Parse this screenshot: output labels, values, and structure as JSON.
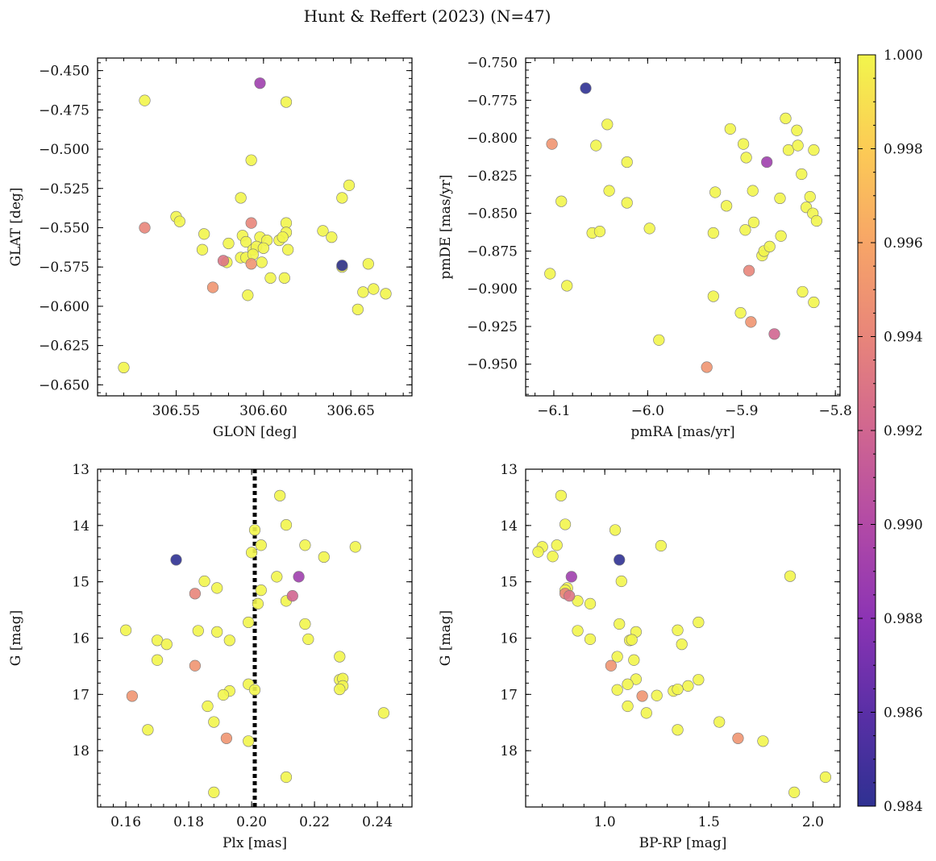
{
  "figure": {
    "title": "Hunt & Reffert (2023) (N=47)"
  },
  "colorbar": {
    "colormap": "plasma",
    "min": 0.984,
    "max": 1.0,
    "ticks": [
      "0.984",
      "0.986",
      "0.988",
      "0.990",
      "0.992",
      "0.994",
      "0.996",
      "0.998",
      "1.000"
    ],
    "tick_values": [
      0.984,
      0.986,
      0.988,
      0.99,
      0.992,
      0.994,
      0.996,
      0.998,
      1.0
    ]
  },
  "chart_data": [
    {
      "type": "scatter",
      "id": "glon-glat",
      "xlabel": "GLON [deg]",
      "ylabel": "GLAT [deg]",
      "xlim": [
        306.505,
        306.685
      ],
      "ylim": [
        -0.657,
        -0.442
      ],
      "xticks": [
        306.55,
        306.6,
        306.65
      ],
      "xticklabels": [
        "306.55",
        "306.60",
        "306.65"
      ],
      "yticks": [
        -0.65,
        -0.625,
        -0.6,
        -0.575,
        -0.55,
        -0.525,
        -0.5,
        -0.475,
        -0.45
      ],
      "yticklabels": [
        "−0.650",
        "−0.625",
        "−0.600",
        "−0.575",
        "−0.550",
        "−0.525",
        "−0.500",
        "−0.475",
        "−0.450"
      ],
      "invert_y": false,
      "points": [
        {
          "x": 306.532,
          "y": -0.469,
          "c": 1.0
        },
        {
          "x": 306.598,
          "y": -0.458,
          "c": 0.989
        },
        {
          "x": 306.613,
          "y": -0.47,
          "c": 1.0
        },
        {
          "x": 306.593,
          "y": -0.507,
          "c": 1.0
        },
        {
          "x": 306.587,
          "y": -0.531,
          "c": 1.0
        },
        {
          "x": 306.645,
          "y": -0.531,
          "c": 1.0
        },
        {
          "x": 306.649,
          "y": -0.523,
          "c": 1.0
        },
        {
          "x": 306.55,
          "y": -0.543,
          "c": 1.0
        },
        {
          "x": 306.552,
          "y": -0.546,
          "c": 1.0
        },
        {
          "x": 306.532,
          "y": -0.55,
          "c": 0.994
        },
        {
          "x": 306.593,
          "y": -0.547,
          "c": 0.994
        },
        {
          "x": 306.613,
          "y": -0.547,
          "c": 1.0
        },
        {
          "x": 306.566,
          "y": -0.554,
          "c": 1.0
        },
        {
          "x": 306.588,
          "y": -0.555,
          "c": 1.0
        },
        {
          "x": 306.598,
          "y": -0.556,
          "c": 1.0
        },
        {
          "x": 306.613,
          "y": -0.553,
          "c": 1.0
        },
        {
          "x": 306.634,
          "y": -0.552,
          "c": 1.0
        },
        {
          "x": 306.639,
          "y": -0.556,
          "c": 1.0
        },
        {
          "x": 306.58,
          "y": -0.56,
          "c": 1.0
        },
        {
          "x": 306.59,
          "y": -0.559,
          "c": 1.0
        },
        {
          "x": 306.602,
          "y": -0.558,
          "c": 1.0
        },
        {
          "x": 306.609,
          "y": -0.558,
          "c": 1.0
        },
        {
          "x": 306.611,
          "y": -0.556,
          "c": 1.0
        },
        {
          "x": 306.565,
          "y": -0.564,
          "c": 1.0
        },
        {
          "x": 306.594,
          "y": -0.564,
          "c": 1.0
        },
        {
          "x": 306.596,
          "y": -0.562,
          "c": 1.0
        },
        {
          "x": 306.6,
          "y": -0.563,
          "c": 1.0
        },
        {
          "x": 306.614,
          "y": -0.564,
          "c": 1.0
        },
        {
          "x": 306.587,
          "y": -0.569,
          "c": 1.0
        },
        {
          "x": 306.59,
          "y": -0.569,
          "c": 1.0
        },
        {
          "x": 306.577,
          "y": -0.571,
          "c": 0.993
        },
        {
          "x": 306.579,
          "y": -0.572,
          "c": 1.0
        },
        {
          "x": 306.593,
          "y": -0.573,
          "c": 0.995
        },
        {
          "x": 306.594,
          "y": -0.567,
          "c": 1.0
        },
        {
          "x": 306.599,
          "y": -0.572,
          "c": 1.0
        },
        {
          "x": 306.645,
          "y": -0.574,
          "c": 0.984
        },
        {
          "x": 306.645,
          "y": -0.575,
          "c": 1.0
        },
        {
          "x": 306.66,
          "y": -0.573,
          "c": 1.0
        },
        {
          "x": 306.571,
          "y": -0.588,
          "c": 0.995
        },
        {
          "x": 306.604,
          "y": -0.582,
          "c": 1.0
        },
        {
          "x": 306.612,
          "y": -0.582,
          "c": 1.0
        },
        {
          "x": 306.591,
          "y": -0.593,
          "c": 1.0
        },
        {
          "x": 306.657,
          "y": -0.591,
          "c": 1.0
        },
        {
          "x": 306.663,
          "y": -0.589,
          "c": 1.0
        },
        {
          "x": 306.67,
          "y": -0.592,
          "c": 1.0
        },
        {
          "x": 306.654,
          "y": -0.602,
          "c": 1.0
        },
        {
          "x": 306.52,
          "y": -0.639,
          "c": 1.0
        }
      ]
    },
    {
      "type": "scatter",
      "id": "pmra-pmde",
      "xlabel": "pmRA [mas/yr]",
      "ylabel": "pmDE [mas/yr]",
      "xlim": [
        -6.13,
        -5.795
      ],
      "ylim": [
        -0.971,
        -0.747
      ],
      "xticks": [
        -6.1,
        -6.0,
        -5.9,
        -5.8
      ],
      "xticklabels": [
        "−6.1",
        "−6.0",
        "−5.9",
        "−5.8"
      ],
      "yticks": [
        -0.95,
        -0.925,
        -0.9,
        -0.875,
        -0.85,
        -0.825,
        -0.8,
        -0.775,
        -0.75
      ],
      "yticklabels": [
        "−0.950",
        "−0.925",
        "−0.900",
        "−0.875",
        "−0.850",
        "−0.825",
        "−0.800",
        "−0.775",
        "−0.750"
      ],
      "invert_y": false,
      "points": [
        {
          "x": -6.066,
          "y": -0.767,
          "c": 0.984
        },
        {
          "x": -6.102,
          "y": -0.804,
          "c": 0.995
        },
        {
          "x": -6.043,
          "y": -0.791,
          "c": 1.0
        },
        {
          "x": -6.055,
          "y": -0.805,
          "c": 1.0
        },
        {
          "x": -6.022,
          "y": -0.816,
          "c": 1.0
        },
        {
          "x": -6.092,
          "y": -0.842,
          "c": 1.0
        },
        {
          "x": -6.041,
          "y": -0.835,
          "c": 1.0
        },
        {
          "x": -6.022,
          "y": -0.843,
          "c": 1.0
        },
        {
          "x": -6.059,
          "y": -0.863,
          "c": 1.0
        },
        {
          "x": -6.051,
          "y": -0.862,
          "c": 1.0
        },
        {
          "x": -6.104,
          "y": -0.89,
          "c": 1.0
        },
        {
          "x": -6.086,
          "y": -0.898,
          "c": 1.0
        },
        {
          "x": -5.998,
          "y": -0.86,
          "c": 1.0
        },
        {
          "x": -5.988,
          "y": -0.934,
          "c": 1.0
        },
        {
          "x": -5.937,
          "y": -0.952,
          "c": 0.995
        },
        {
          "x": -5.912,
          "y": -0.794,
          "c": 1.0
        },
        {
          "x": -5.898,
          "y": -0.804,
          "c": 1.0
        },
        {
          "x": -5.895,
          "y": -0.813,
          "c": 1.0
        },
        {
          "x": -5.873,
          "y": -0.816,
          "c": 0.989
        },
        {
          "x": -5.928,
          "y": -0.836,
          "c": 1.0
        },
        {
          "x": -5.916,
          "y": -0.845,
          "c": 1.0
        },
        {
          "x": -5.888,
          "y": -0.835,
          "c": 1.0
        },
        {
          "x": -5.93,
          "y": -0.863,
          "c": 1.0
        },
        {
          "x": -5.896,
          "y": -0.861,
          "c": 1.0
        },
        {
          "x": -5.887,
          "y": -0.856,
          "c": 1.0
        },
        {
          "x": -5.878,
          "y": -0.878,
          "c": 1.0
        },
        {
          "x": -5.876,
          "y": -0.875,
          "c": 1.0
        },
        {
          "x": -5.87,
          "y": -0.872,
          "c": 1.0
        },
        {
          "x": -5.859,
          "y": -0.84,
          "c": 1.0
        },
        {
          "x": -5.858,
          "y": -0.865,
          "c": 1.0
        },
        {
          "x": -5.892,
          "y": -0.888,
          "c": 0.994
        },
        {
          "x": -5.93,
          "y": -0.905,
          "c": 1.0
        },
        {
          "x": -5.901,
          "y": -0.916,
          "c": 1.0
        },
        {
          "x": -5.89,
          "y": -0.922,
          "c": 0.995
        },
        {
          "x": -5.865,
          "y": -0.93,
          "c": 0.992
        },
        {
          "x": -5.853,
          "y": -0.787,
          "c": 1.0
        },
        {
          "x": -5.841,
          "y": -0.795,
          "c": 1.0
        },
        {
          "x": -5.85,
          "y": -0.808,
          "c": 1.0
        },
        {
          "x": -5.84,
          "y": -0.805,
          "c": 1.0
        },
        {
          "x": -5.836,
          "y": -0.824,
          "c": 1.0
        },
        {
          "x": -5.823,
          "y": -0.808,
          "c": 1.0
        },
        {
          "x": -5.827,
          "y": -0.839,
          "c": 1.0
        },
        {
          "x": -5.831,
          "y": -0.846,
          "c": 1.0
        },
        {
          "x": -5.824,
          "y": -0.85,
          "c": 1.0
        },
        {
          "x": -5.82,
          "y": -0.855,
          "c": 1.0
        },
        {
          "x": -5.835,
          "y": -0.902,
          "c": 1.0
        },
        {
          "x": -5.823,
          "y": -0.909,
          "c": 1.0
        }
      ]
    },
    {
      "type": "scatter",
      "id": "plx-g",
      "xlabel": "Plx [mas]",
      "ylabel": "G [mag]",
      "xlim": [
        0.151,
        0.251
      ],
      "ylim": [
        19.0,
        13.0
      ],
      "xticks": [
        0.16,
        0.18,
        0.2,
        0.22,
        0.24
      ],
      "xticklabels": [
        "0.16",
        "0.18",
        "0.20",
        "0.22",
        "0.24"
      ],
      "yticks": [
        13,
        14,
        15,
        16,
        17,
        18
      ],
      "yticklabels": [
        "13",
        "14",
        "15",
        "16",
        "17",
        "18"
      ],
      "invert_y": true,
      "vline": {
        "x": 0.201,
        "style": "dotted"
      },
      "points": [
        {
          "x": 0.209,
          "y": 13.47,
          "c": 1.0
        },
        {
          "x": 0.201,
          "y": 14.08,
          "c": 1.0
        },
        {
          "x": 0.211,
          "y": 13.99,
          "c": 1.0
        },
        {
          "x": 0.203,
          "y": 14.35,
          "c": 1.0
        },
        {
          "x": 0.217,
          "y": 14.35,
          "c": 1.0
        },
        {
          "x": 0.233,
          "y": 14.38,
          "c": 1.0
        },
        {
          "x": 0.223,
          "y": 14.56,
          "c": 1.0
        },
        {
          "x": 0.2,
          "y": 14.48,
          "c": 1.0
        },
        {
          "x": 0.176,
          "y": 14.61,
          "c": 0.984
        },
        {
          "x": 0.208,
          "y": 14.91,
          "c": 1.0
        },
        {
          "x": 0.215,
          "y": 14.91,
          "c": 0.989
        },
        {
          "x": 0.185,
          "y": 14.99,
          "c": 1.0
        },
        {
          "x": 0.189,
          "y": 15.11,
          "c": 1.0
        },
        {
          "x": 0.203,
          "y": 15.15,
          "c": 1.0
        },
        {
          "x": 0.182,
          "y": 15.21,
          "c": 0.994
        },
        {
          "x": 0.213,
          "y": 15.25,
          "c": 0.992
        },
        {
          "x": 0.211,
          "y": 15.34,
          "c": 1.0
        },
        {
          "x": 0.202,
          "y": 15.39,
          "c": 1.0
        },
        {
          "x": 0.199,
          "y": 15.72,
          "c": 1.0
        },
        {
          "x": 0.217,
          "y": 15.75,
          "c": 1.0
        },
        {
          "x": 0.16,
          "y": 15.86,
          "c": 1.0
        },
        {
          "x": 0.183,
          "y": 15.87,
          "c": 1.0
        },
        {
          "x": 0.189,
          "y": 15.89,
          "c": 1.0
        },
        {
          "x": 0.17,
          "y": 16.04,
          "c": 1.0
        },
        {
          "x": 0.173,
          "y": 16.11,
          "c": 1.0
        },
        {
          "x": 0.193,
          "y": 16.04,
          "c": 1.0
        },
        {
          "x": 0.218,
          "y": 16.02,
          "c": 1.0
        },
        {
          "x": 0.228,
          "y": 16.33,
          "c": 1.0
        },
        {
          "x": 0.17,
          "y": 16.39,
          "c": 1.0
        },
        {
          "x": 0.182,
          "y": 16.49,
          "c": 0.995
        },
        {
          "x": 0.228,
          "y": 16.74,
          "c": 1.0
        },
        {
          "x": 0.229,
          "y": 16.72,
          "c": 1.0
        },
        {
          "x": 0.229,
          "y": 16.85,
          "c": 1.0
        },
        {
          "x": 0.228,
          "y": 16.91,
          "c": 1.0
        },
        {
          "x": 0.199,
          "y": 16.82,
          "c": 1.0
        },
        {
          "x": 0.201,
          "y": 16.92,
          "c": 1.0
        },
        {
          "x": 0.193,
          "y": 16.94,
          "c": 1.0
        },
        {
          "x": 0.191,
          "y": 17.01,
          "c": 1.0
        },
        {
          "x": 0.162,
          "y": 17.03,
          "c": 0.995
        },
        {
          "x": 0.186,
          "y": 17.21,
          "c": 1.0
        },
        {
          "x": 0.242,
          "y": 17.33,
          "c": 1.0
        },
        {
          "x": 0.188,
          "y": 17.49,
          "c": 1.0
        },
        {
          "x": 0.167,
          "y": 17.63,
          "c": 1.0
        },
        {
          "x": 0.192,
          "y": 17.78,
          "c": 0.995
        },
        {
          "x": 0.199,
          "y": 17.83,
          "c": 1.0
        },
        {
          "x": 0.211,
          "y": 18.47,
          "c": 1.0
        },
        {
          "x": 0.188,
          "y": 18.74,
          "c": 1.0
        }
      ]
    },
    {
      "type": "scatter",
      "id": "bprp-g",
      "xlabel": "BP-RP [mag]",
      "ylabel": "G [mag]",
      "xlim": [
        0.62,
        2.13
      ],
      "ylim": [
        19.0,
        13.0
      ],
      "xticks": [
        1.0,
        1.5,
        2.0
      ],
      "xticklabels": [
        "1.0",
        "1.5",
        "2.0"
      ],
      "yticks": [
        13,
        14,
        15,
        16,
        17,
        18
      ],
      "yticklabels": [
        "13",
        "14",
        "15",
        "16",
        "17",
        "18"
      ],
      "invert_y": true,
      "points": [
        {
          "x": 0.79,
          "y": 13.47,
          "c": 1.0
        },
        {
          "x": 0.81,
          "y": 13.98,
          "c": 1.0
        },
        {
          "x": 1.05,
          "y": 14.08,
          "c": 1.0
        },
        {
          "x": 0.7,
          "y": 14.38,
          "c": 1.0
        },
        {
          "x": 0.68,
          "y": 14.47,
          "c": 1.0
        },
        {
          "x": 0.77,
          "y": 14.35,
          "c": 1.0
        },
        {
          "x": 0.75,
          "y": 14.55,
          "c": 1.0
        },
        {
          "x": 1.27,
          "y": 14.36,
          "c": 1.0
        },
        {
          "x": 1.07,
          "y": 14.61,
          "c": 0.984
        },
        {
          "x": 0.84,
          "y": 14.91,
          "c": 0.989
        },
        {
          "x": 1.08,
          "y": 14.99,
          "c": 1.0
        },
        {
          "x": 1.89,
          "y": 14.9,
          "c": 1.0
        },
        {
          "x": 0.82,
          "y": 15.11,
          "c": 1.0
        },
        {
          "x": 0.81,
          "y": 15.15,
          "c": 1.0
        },
        {
          "x": 0.81,
          "y": 15.21,
          "c": 0.994
        },
        {
          "x": 0.83,
          "y": 15.25,
          "c": 0.993
        },
        {
          "x": 0.87,
          "y": 15.34,
          "c": 1.0
        },
        {
          "x": 0.93,
          "y": 15.39,
          "c": 1.0
        },
        {
          "x": 1.07,
          "y": 15.75,
          "c": 1.0
        },
        {
          "x": 1.45,
          "y": 15.72,
          "c": 1.0
        },
        {
          "x": 0.87,
          "y": 15.87,
          "c": 1.0
        },
        {
          "x": 1.15,
          "y": 15.89,
          "c": 1.0
        },
        {
          "x": 1.35,
          "y": 15.86,
          "c": 1.0
        },
        {
          "x": 0.93,
          "y": 16.02,
          "c": 1.0
        },
        {
          "x": 1.12,
          "y": 16.04,
          "c": 1.0
        },
        {
          "x": 1.13,
          "y": 16.03,
          "c": 1.0
        },
        {
          "x": 1.37,
          "y": 16.11,
          "c": 1.0
        },
        {
          "x": 1.06,
          "y": 16.33,
          "c": 1.0
        },
        {
          "x": 1.14,
          "y": 16.39,
          "c": 1.0
        },
        {
          "x": 1.03,
          "y": 16.49,
          "c": 0.995
        },
        {
          "x": 1.15,
          "y": 16.73,
          "c": 1.0
        },
        {
          "x": 1.45,
          "y": 16.74,
          "c": 1.0
        },
        {
          "x": 1.11,
          "y": 16.82,
          "c": 1.0
        },
        {
          "x": 1.4,
          "y": 16.85,
          "c": 1.0
        },
        {
          "x": 1.06,
          "y": 16.92,
          "c": 1.0
        },
        {
          "x": 1.33,
          "y": 16.94,
          "c": 1.0
        },
        {
          "x": 1.35,
          "y": 16.91,
          "c": 1.0
        },
        {
          "x": 1.18,
          "y": 17.03,
          "c": 0.995
        },
        {
          "x": 1.25,
          "y": 17.02,
          "c": 1.0
        },
        {
          "x": 1.11,
          "y": 17.21,
          "c": 1.0
        },
        {
          "x": 1.2,
          "y": 17.33,
          "c": 1.0
        },
        {
          "x": 1.55,
          "y": 17.49,
          "c": 1.0
        },
        {
          "x": 1.35,
          "y": 17.63,
          "c": 1.0
        },
        {
          "x": 1.64,
          "y": 17.78,
          "c": 0.995
        },
        {
          "x": 1.76,
          "y": 17.83,
          "c": 1.0
        },
        {
          "x": 2.06,
          "y": 18.47,
          "c": 1.0
        },
        {
          "x": 1.91,
          "y": 18.74,
          "c": 1.0
        }
      ]
    }
  ]
}
